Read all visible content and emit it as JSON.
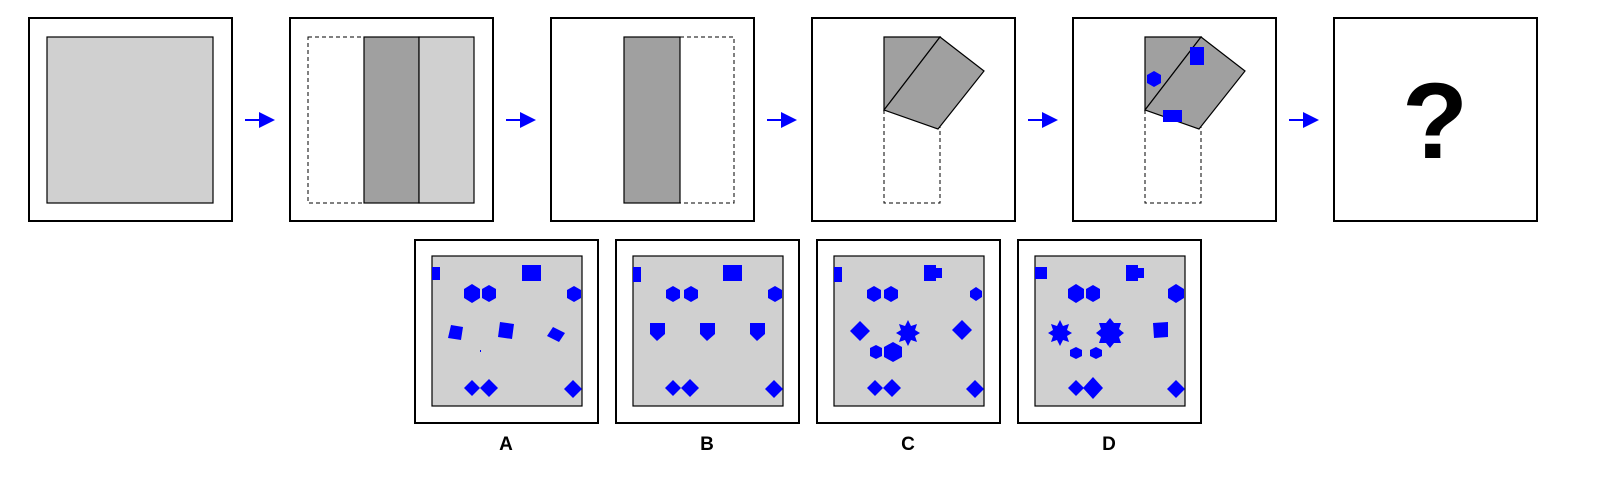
{
  "colors": {
    "paper": "#d0d0d0",
    "folded": "#a0a0a0",
    "punch": "#0000ff",
    "arrow": "#0000ff",
    "frame": "#000000"
  },
  "sequence": {
    "step_count": 6,
    "question_mark": "?"
  },
  "options": [
    {
      "label": "A"
    },
    {
      "label": "B"
    },
    {
      "label": "C"
    },
    {
      "label": "D"
    }
  ]
}
